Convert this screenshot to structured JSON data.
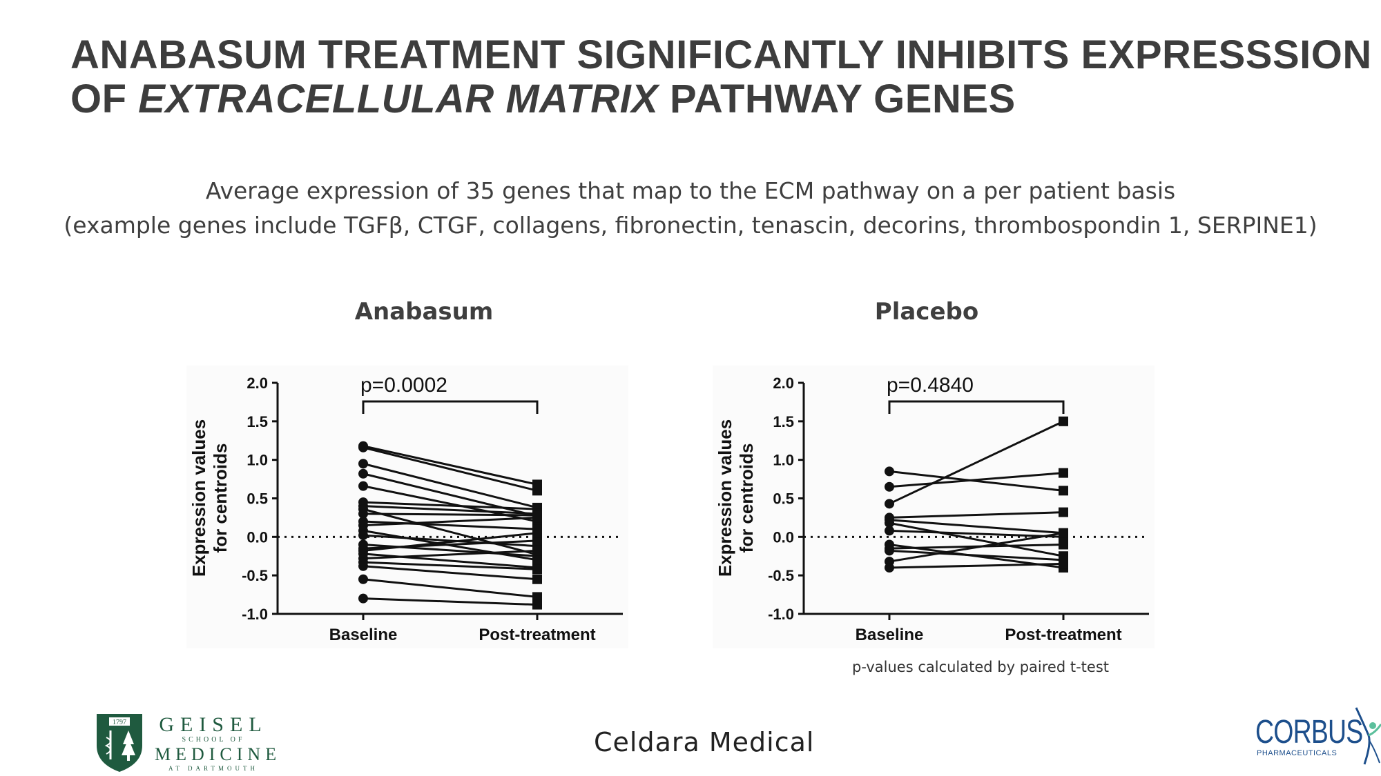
{
  "slide": {
    "title_line1": "ANABASUM TREATMENT SIGNIFICANTLY INHIBITS EXPRESSSION",
    "title_line2_prefix": "OF ",
    "title_line2_italic": "EXTRACELLULAR MATRIX",
    "title_line2_suffix": " PATHWAY GENES",
    "subtitle_line1": "Average expression of 35 genes that map to the ECM pathway on a per patient basis",
    "subtitle_line2": "(example genes include TGFβ, CTGF, collagens, fibronectin, tenascin, decorins, thrombospondin 1, SERPINE1)",
    "footnote": "p-values calculated by paired t-test"
  },
  "logos": {
    "geisel_line1": "GEISEL",
    "geisel_line2": "SCHOOL OF",
    "geisel_line3": "MEDICINE",
    "geisel_line4": "AT DARTMOUTH",
    "geisel_year": "1797",
    "celdara": "Celdara Medical",
    "corbus": "CORBUS",
    "corbus_sub": "PHARMACEUTICALS"
  },
  "colors": {
    "text": "#3d3d3d",
    "marks": "#111111",
    "geisel_green": "#1f5a3f",
    "corbus_blue": "#1d4f8c",
    "corbus_accent": "#5bbf9c"
  },
  "chart_data": [
    {
      "type": "line",
      "title": "Anabasum",
      "ylabel_line1": "Expression values",
      "ylabel_line2": "for centroids",
      "categories": [
        "Baseline",
        "Post-treatment"
      ],
      "ylim": [
        -1.0,
        2.0
      ],
      "yticks": [
        "2.0",
        "1.5",
        "1.0",
        "0.5",
        "0.0",
        "-0.5",
        "-1.0"
      ],
      "reference_line": 0.0,
      "annotation": "p=0.0002",
      "baseline_marker": "circle",
      "post_marker": "square",
      "pairs": [
        [
          1.18,
          0.68
        ],
        [
          1.16,
          0.6
        ],
        [
          0.95,
          0.38
        ],
        [
          0.82,
          0.27
        ],
        [
          0.66,
          0.2
        ],
        [
          0.45,
          0.36
        ],
        [
          0.4,
          0.3
        ],
        [
          0.36,
          -0.23
        ],
        [
          0.3,
          0.28
        ],
        [
          0.2,
          0.1
        ],
        [
          0.15,
          0.25
        ],
        [
          0.08,
          -0.3
        ],
        [
          0.02,
          -0.12
        ],
        [
          -0.1,
          -0.25
        ],
        [
          -0.15,
          -0.05
        ],
        [
          -0.18,
          0.05
        ],
        [
          -0.22,
          -0.4
        ],
        [
          -0.28,
          -0.18
        ],
        [
          -0.33,
          -0.42
        ],
        [
          -0.38,
          -0.55
        ],
        [
          -0.55,
          -0.78
        ],
        [
          -0.8,
          -0.88
        ]
      ]
    },
    {
      "type": "line",
      "title": "Placebo",
      "ylabel_line1": "Expression values",
      "ylabel_line2": "for centroids",
      "categories": [
        "Baseline",
        "Post-treatment"
      ],
      "ylim": [
        -1.0,
        2.0
      ],
      "yticks": [
        "2.0",
        "1.5",
        "1.0",
        "0.5",
        "0.0",
        "-0.5",
        "-1.0"
      ],
      "reference_line": 0.0,
      "annotation": "p=0.4840",
      "baseline_marker": "circle",
      "post_marker": "square",
      "pairs": [
        [
          0.85,
          0.6
        ],
        [
          0.65,
          0.83
        ],
        [
          0.43,
          1.5
        ],
        [
          0.25,
          0.32
        ],
        [
          0.22,
          0.05
        ],
        [
          0.18,
          -0.25
        ],
        [
          0.08,
          0.0
        ],
        [
          -0.1,
          -0.4
        ],
        [
          -0.15,
          -0.1
        ],
        [
          -0.18,
          -0.3
        ],
        [
          -0.32,
          0.05
        ],
        [
          -0.4,
          -0.35
        ]
      ]
    }
  ]
}
